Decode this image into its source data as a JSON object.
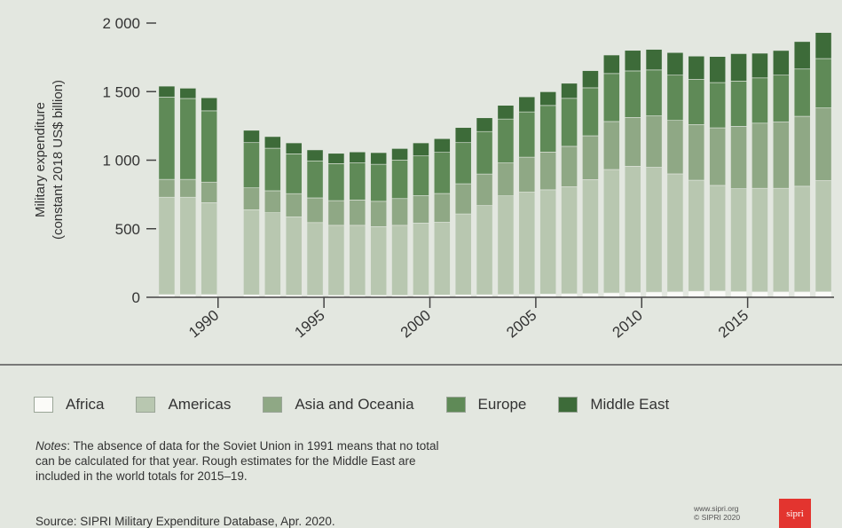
{
  "chart_data": {
    "type": "bar",
    "stacked": true,
    "ylabel": "Military expenditure",
    "ylabel_sub": "(constant 2018 US$ billion)",
    "ylim": [
      0,
      2000
    ],
    "yticks": [
      0,
      500,
      1000,
      1500,
      2000
    ],
    "ytick_labels": [
      "0",
      "500",
      "1 000",
      "1 500",
      "2 000"
    ],
    "xticks": [
      1990,
      1995,
      2000,
      2005,
      2010,
      2015
    ],
    "grid": false,
    "legend_position": "bottom",
    "categories": [
      1988,
      1989,
      1990,
      1992,
      1993,
      1994,
      1995,
      1996,
      1997,
      1998,
      1999,
      2000,
      2001,
      2002,
      2003,
      2004,
      2005,
      2006,
      2007,
      2008,
      2009,
      2010,
      2011,
      2012,
      2013,
      2014,
      2015,
      2016,
      2017,
      2018,
      2019
    ],
    "series": [
      {
        "name": "Africa",
        "color": "#fbfbf8",
        "values": [
          20,
          20,
          20,
          18,
          17,
          16,
          15,
          15,
          15,
          15,
          15,
          16,
          17,
          18,
          19,
          20,
          22,
          24,
          26,
          28,
          32,
          36,
          38,
          40,
          44,
          46,
          42,
          40,
          40,
          40,
          41
        ]
      },
      {
        "name": "Americas",
        "color": "#b8c7b0",
        "values": [
          710,
          710,
          670,
          620,
          600,
          570,
          530,
          510,
          510,
          500,
          510,
          525,
          530,
          590,
          650,
          720,
          745,
          760,
          780,
          830,
          900,
          920,
          910,
          860,
          810,
          770,
          750,
          755,
          755,
          770,
          810
        ]
      },
      {
        "name": "Asia and Oceania",
        "color": "#8fa885",
        "values": [
          130,
          130,
          150,
          160,
          160,
          170,
          180,
          180,
          185,
          185,
          195,
          200,
          210,
          220,
          230,
          240,
          255,
          275,
          295,
          320,
          350,
          355,
          375,
          390,
          405,
          420,
          455,
          475,
          485,
          510,
          530
        ]
      },
      {
        "name": "Europe",
        "color": "#5f8a57",
        "values": [
          600,
          590,
          520,
          330,
          310,
          290,
          270,
          270,
          270,
          270,
          280,
          290,
          300,
          300,
          310,
          320,
          330,
          340,
          350,
          350,
          350,
          340,
          335,
          330,
          330,
          330,
          330,
          330,
          340,
          345,
          360
        ]
      },
      {
        "name": "Middle East",
        "color": "#3d6b39",
        "values": [
          80,
          75,
          95,
          90,
          85,
          80,
          80,
          75,
          80,
          85,
          85,
          95,
          100,
          110,
          100,
          100,
          110,
          100,
          110,
          125,
          135,
          150,
          150,
          165,
          170,
          190,
          200,
          180,
          180,
          200,
          190
        ]
      }
    ]
  },
  "legend": {
    "items": [
      {
        "label": "Africa",
        "color": "#fbfbf8"
      },
      {
        "label": "Americas",
        "color": "#b8c7b0"
      },
      {
        "label": "Asia and Oceania",
        "color": "#8fa885"
      },
      {
        "label": "Europe",
        "color": "#5f8a57"
      },
      {
        "label": "Middle East",
        "color": "#3d6b39"
      }
    ]
  },
  "notes": {
    "prefix": "Notes",
    "text": ": The absence of data for the Soviet Union in 1991 means that no total can be calculated for that year. Rough estimates for the Middle East are included in the world totals for 2015–19."
  },
  "source": "Source: SIPRI Military Expenditure Database, Apr. 2020.",
  "credit": {
    "line1": "www.sipri.org",
    "line2": "© SIPRI 2020"
  },
  "logo_text": "sipri"
}
